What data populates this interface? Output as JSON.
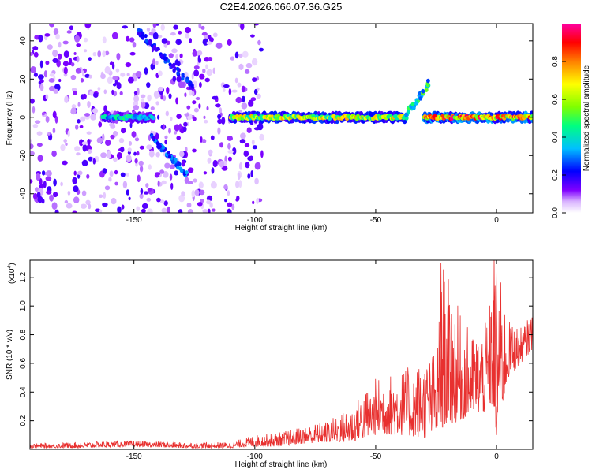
{
  "figure_title": "C2E4.2026.066.07.36.G25",
  "chart_data": [
    {
      "type": "heatmap",
      "title": "C2E4.2026.066.07.36.G25",
      "xlabel": "Height of straight line (km)",
      "ylabel": "Frequency (Hz)",
      "xlim": [
        -193,
        15
      ],
      "ylim": [
        -50,
        49
      ],
      "x_ticks": [
        -150,
        -100,
        -50,
        0
      ],
      "y_ticks": [
        -40,
        -20,
        0,
        20,
        40
      ],
      "colorbar": {
        "label": "Normalized spectral amplitude",
        "range": [
          0.0,
          1.0
        ],
        "ticks": [
          0.0,
          0.2,
          0.4,
          0.6,
          0.8
        ],
        "colors": [
          "#ffffff",
          "#d9b3ff",
          "#8000ff",
          "#0000ff",
          "#00c0ff",
          "#00ff80",
          "#80ff00",
          "#ffff00",
          "#ff8000",
          "#ff0000",
          "#ff00a0"
        ]
      },
      "features": [
        {
          "name": "noise-region",
          "x_range": [
            -193,
            -97
          ],
          "f_range": [
            -50,
            49
          ],
          "amplitude": 0.15
        },
        {
          "name": "signal-band-left",
          "x_range": [
            -163,
            -142
          ],
          "f_center": 0,
          "amplitude": 0.45
        },
        {
          "name": "signal-band-main",
          "x_range": [
            -110,
            -38
          ],
          "f_center": 0,
          "amplitude": 0.7
        },
        {
          "name": "signal-rise",
          "x_range": [
            -38,
            -28
          ],
          "f_range": [
            0,
            18
          ],
          "amplitude": 0.5
        },
        {
          "name": "signal-band-right",
          "x_range": [
            -30,
            15
          ],
          "f_center": 0,
          "amplitude": 0.9
        },
        {
          "name": "diagonal-streak-1",
          "x_range": [
            -143,
            -128
          ],
          "f_range": [
            -10,
            -30
          ],
          "amplitude": 0.3
        },
        {
          "name": "diagonal-streak-2",
          "x_range": [
            -148,
            -125
          ],
          "f_range": [
            45,
            15
          ],
          "amplitude": 0.25
        }
      ]
    },
    {
      "type": "line",
      "xlabel": "Height of straight line (km)",
      "ylabel": "SNR (10 * v/v)",
      "y_multiplier": "(x10",
      "y_multiplier_exp": "4",
      "y_multiplier_close": ")",
      "xlim": [
        -193,
        15
      ],
      "ylim": [
        0,
        1.32
      ],
      "x_ticks": [
        -150,
        -100,
        -50,
        0
      ],
      "y_ticks": [
        0.2,
        0.4,
        0.6,
        0.8,
        1.0,
        1.2
      ],
      "color": "#e8302f",
      "envelope": {
        "x": [
          -193,
          -175,
          -150,
          -130,
          -110,
          -100,
          -90,
          -80,
          -70,
          -60,
          -50,
          -40,
          -30,
          -25,
          -22,
          -15,
          -10,
          -5,
          -2,
          0,
          5,
          10,
          15
        ],
        "y_low": [
          0.01,
          0.01,
          0.02,
          0.01,
          0.01,
          0.02,
          0.02,
          0.04,
          0.05,
          0.05,
          0.1,
          0.1,
          0.08,
          0.1,
          0.15,
          0.2,
          0.25,
          0.25,
          0.3,
          0.1,
          0.5,
          0.6,
          0.7
        ],
        "y_high": [
          0.04,
          0.05,
          0.06,
          0.05,
          0.05,
          0.1,
          0.12,
          0.16,
          0.2,
          0.3,
          0.5,
          0.55,
          0.62,
          0.7,
          1.3,
          0.95,
          0.8,
          0.85,
          1.1,
          1.33,
          0.9,
          0.85,
          0.95
        ]
      },
      "spikes": [
        {
          "x": -23,
          "y": 1.3
        },
        {
          "x": -1,
          "y": 1.33
        },
        {
          "x": 0,
          "y": 0.1
        }
      ]
    }
  ]
}
